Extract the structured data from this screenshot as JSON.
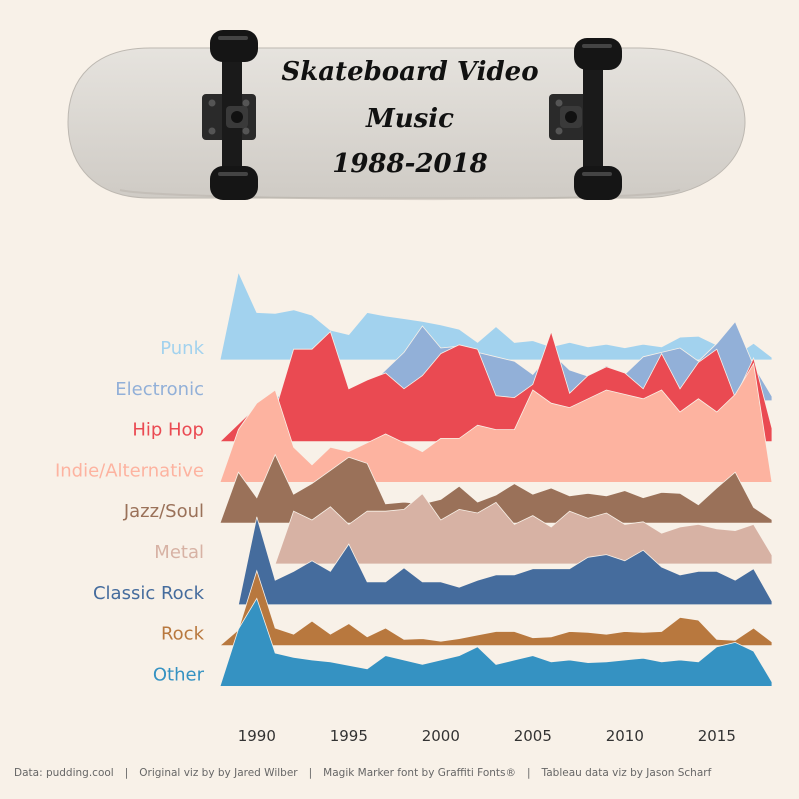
{
  "title": {
    "line1": "Skateboard Video",
    "line2": "Music",
    "line3": "1988-2018"
  },
  "footer": {
    "data_credit": "Data: pudding.cool",
    "original_credit": "Original viz by by Jared Wilber",
    "font_credit": "Magik Marker font by Graffiti Fonts®",
    "tableau_credit": "Tableau data viz by Jason Scharf",
    "separator": "|"
  },
  "colors": {
    "background": "#f8f1e8",
    "deck": "#dcd9d4",
    "hardware": "#1a1a1a"
  },
  "chart_data": {
    "type": "area",
    "subtype": "ridgeline",
    "x_tick_labels": [
      "1990",
      "1995",
      "2000",
      "2005",
      "2010",
      "2015"
    ],
    "xlim": [
      1988,
      2018
    ],
    "x": [
      1988,
      1989,
      1990,
      1991,
      1992,
      1993,
      1994,
      1995,
      1996,
      1997,
      1998,
      1999,
      2000,
      2001,
      2002,
      2003,
      2004,
      2005,
      2006,
      2007,
      2008,
      2009,
      2010,
      2011,
      2012,
      2013,
      2014,
      2015,
      2016,
      2017,
      2018
    ],
    "series": [
      {
        "name": "Punk",
        "color": "#a2d2ee",
        "values": [
          0,
          1.0,
          0.54,
          0.53,
          0.57,
          0.51,
          0.34,
          0.29,
          0.54,
          0.5,
          0.47,
          0.44,
          0.4,
          0.35,
          0.2,
          0.38,
          0.2,
          0.22,
          0.15,
          0.2,
          0.15,
          0.18,
          0.14,
          0.18,
          0.15,
          0.26,
          0.27,
          0.17,
          0.05,
          0.19,
          0.03
        ]
      },
      {
        "name": "Electronic",
        "color": "#92b0d8",
        "values": [
          null,
          null,
          null,
          0,
          0.3,
          0.1,
          0.05,
          0,
          0.15,
          0.35,
          0.55,
          0.85,
          0.6,
          0.62,
          0.55,
          0.5,
          0.45,
          0.3,
          0.55,
          0.35,
          0.28,
          0.4,
          0.3,
          0.5,
          0.55,
          0.6,
          0.45,
          0.65,
          0.9,
          0.4,
          0.05
        ]
      },
      {
        "name": "Hip Hop",
        "color": "#ea4a52",
        "values": [
          0,
          0.2,
          0.4,
          0.35,
          1.05,
          1.05,
          1.25,
          0.6,
          0.7,
          0.78,
          0.6,
          0.75,
          1.0,
          1.1,
          1.05,
          0.52,
          0.5,
          0.65,
          1.25,
          0.55,
          0.75,
          0.85,
          0.78,
          0.6,
          1.0,
          0.6,
          0.9,
          1.05,
          0.5,
          0.95,
          0.15
        ]
      },
      {
        "name": "Indie/Alternative",
        "color": "#fdb3a0",
        "values": [
          0,
          0.6,
          0.9,
          1.05,
          0.4,
          0.2,
          0.4,
          0.35,
          0.45,
          0.55,
          0.45,
          0.35,
          0.5,
          0.5,
          0.65,
          0.6,
          0.6,
          1.05,
          0.9,
          0.85,
          0.95,
          1.05,
          1.0,
          0.95,
          1.05,
          0.8,
          0.95,
          0.8,
          1.0,
          1.35,
          0
        ]
      },
      {
        "name": "Jazz/Soul",
        "color": "#9a7159",
        "values": [
          0,
          0.58,
          0.29,
          0.78,
          0.33,
          0.45,
          0.6,
          0.75,
          0.68,
          0.22,
          0.24,
          0.22,
          0.27,
          0.42,
          0.24,
          0.32,
          0.45,
          0.33,
          0.4,
          0.31,
          0.34,
          0.31,
          0.37,
          0.29,
          0.35,
          0.34,
          0.21,
          0.4,
          0.58,
          0.18,
          0.04
        ]
      },
      {
        "name": "Metal",
        "color": "#d7b2a4",
        "values": [
          null,
          null,
          null,
          0,
          0.6,
          0.5,
          0.65,
          0.45,
          0.6,
          0.6,
          0.62,
          0.8,
          0.5,
          0.62,
          0.58,
          0.7,
          0.45,
          0.55,
          0.42,
          0.6,
          0.52,
          0.58,
          0.45,
          0.48,
          0.35,
          0.42,
          0.45,
          0.4,
          0.38,
          0.45,
          0.1
        ]
      },
      {
        "name": "Classic Rock",
        "color": "#456c9d",
        "values": [
          null,
          0,
          1.0,
          0.28,
          0.38,
          0.5,
          0.38,
          0.69,
          0.26,
          0.26,
          0.42,
          0.26,
          0.26,
          0.2,
          0.28,
          0.34,
          0.34,
          0.41,
          0.41,
          0.41,
          0.54,
          0.57,
          0.5,
          0.62,
          0.43,
          0.34,
          0.38,
          0.38,
          0.28,
          0.41,
          0.04
        ]
      },
      {
        "name": "Rock",
        "color": "#b8783e",
        "values": [
          0,
          0.18,
          0.85,
          0.2,
          0.13,
          0.28,
          0.13,
          0.25,
          0.1,
          0.2,
          0.07,
          0.08,
          0.05,
          0.08,
          0.12,
          0.16,
          0.16,
          0.09,
          0.1,
          0.16,
          0.15,
          0.13,
          0.16,
          0.15,
          0.16,
          0.32,
          0.29,
          0.07,
          0.06,
          0.2,
          0.04
        ]
      },
      {
        "name": "Other",
        "color": "#3592c2",
        "values": [
          0,
          0.65,
          1.0,
          0.38,
          0.33,
          0.3,
          0.28,
          0.24,
          0.2,
          0.35,
          0.3,
          0.25,
          0.3,
          0.35,
          0.45,
          0.25,
          0.3,
          0.35,
          0.28,
          0.3,
          0.27,
          0.28,
          0.3,
          0.32,
          0.28,
          0.3,
          0.28,
          0.45,
          0.5,
          0.4,
          0.05
        ]
      }
    ]
  }
}
